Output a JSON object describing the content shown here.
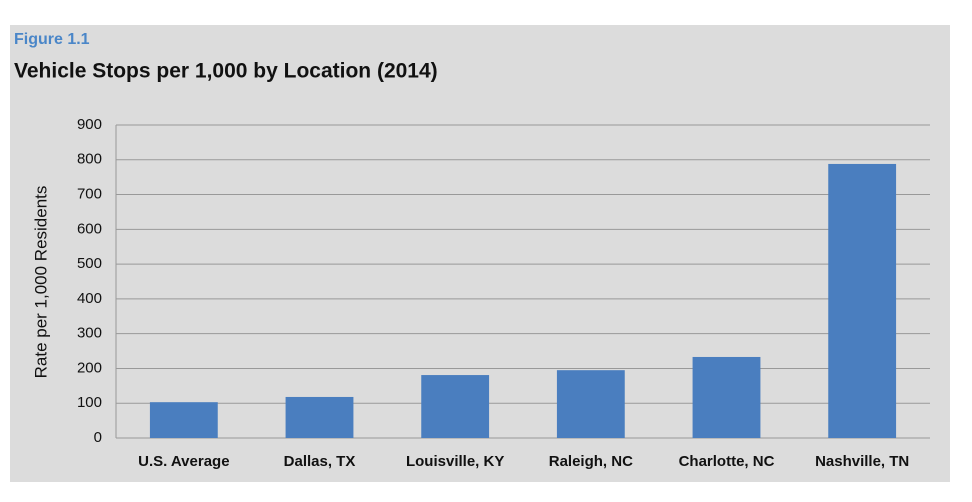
{
  "chart_data": {
    "type": "bar",
    "figure_label": "Figure 1.1",
    "title": "Vehicle Stops per 1,000 by Location (2014)",
    "y_label": "Rate per 1,000 Residents",
    "categories": [
      "U.S. Average",
      "Dallas, TX",
      "Louisville, KY",
      "Raleigh, NC",
      "Charlotte, NC",
      "Nashville, TN"
    ],
    "values": [
      103,
      118,
      181,
      195,
      233,
      788
    ],
    "color": "#4a7ebf",
    "ylim": [
      0,
      900
    ],
    "yticks": [
      0,
      100,
      200,
      300,
      400,
      500,
      600,
      700,
      800,
      900
    ],
    "grid": true
  }
}
